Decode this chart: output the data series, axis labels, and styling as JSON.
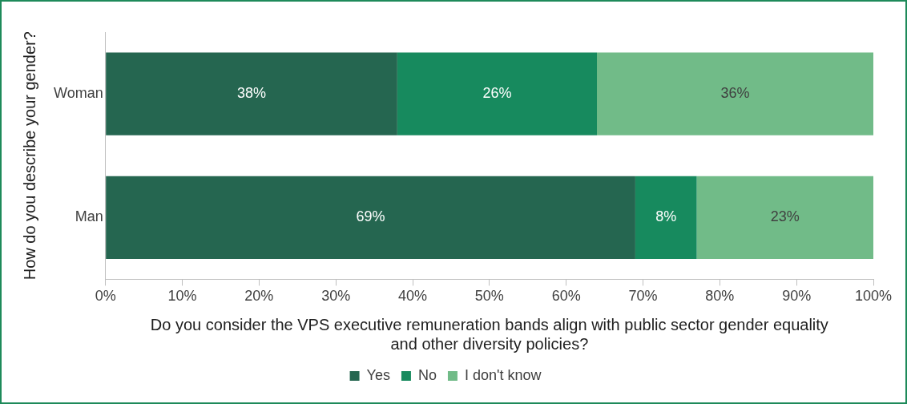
{
  "chart_data": {
    "type": "bar",
    "orientation": "horizontal",
    "stacked": true,
    "xlabel": "Do you consider the VPS executive remuneration bands align with public sector gender equality and other diversity policies?",
    "ylabel": "How do you describe your gender?",
    "categories": [
      "Woman",
      "Man"
    ],
    "series": [
      {
        "name": "Yes",
        "color": "#256650",
        "values": [
          38,
          69
        ],
        "value_labels": [
          "38%",
          "69%"
        ]
      },
      {
        "name": "No",
        "color": "#178a5e",
        "values": [
          26,
          8
        ],
        "value_labels": [
          "26%",
          "8%"
        ]
      },
      {
        "name": "I don't know",
        "color": "#71bb88",
        "values": [
          36,
          23
        ],
        "value_labels": [
          "36%",
          "23%"
        ]
      }
    ],
    "xlim": [
      0,
      100
    ],
    "xticks": [
      {
        "value": 0,
        "label": "0%"
      },
      {
        "value": 10,
        "label": "10%"
      },
      {
        "value": 20,
        "label": "20%"
      },
      {
        "value": 30,
        "label": "30%"
      },
      {
        "value": 40,
        "label": "40%"
      },
      {
        "value": 50,
        "label": "50%"
      },
      {
        "value": 60,
        "label": "60%"
      },
      {
        "value": 70,
        "label": "70%"
      },
      {
        "value": 80,
        "label": "80%"
      },
      {
        "value": 90,
        "label": "90%"
      },
      {
        "value": 100,
        "label": "100%"
      }
    ],
    "grid": false,
    "legend": "bottom"
  }
}
